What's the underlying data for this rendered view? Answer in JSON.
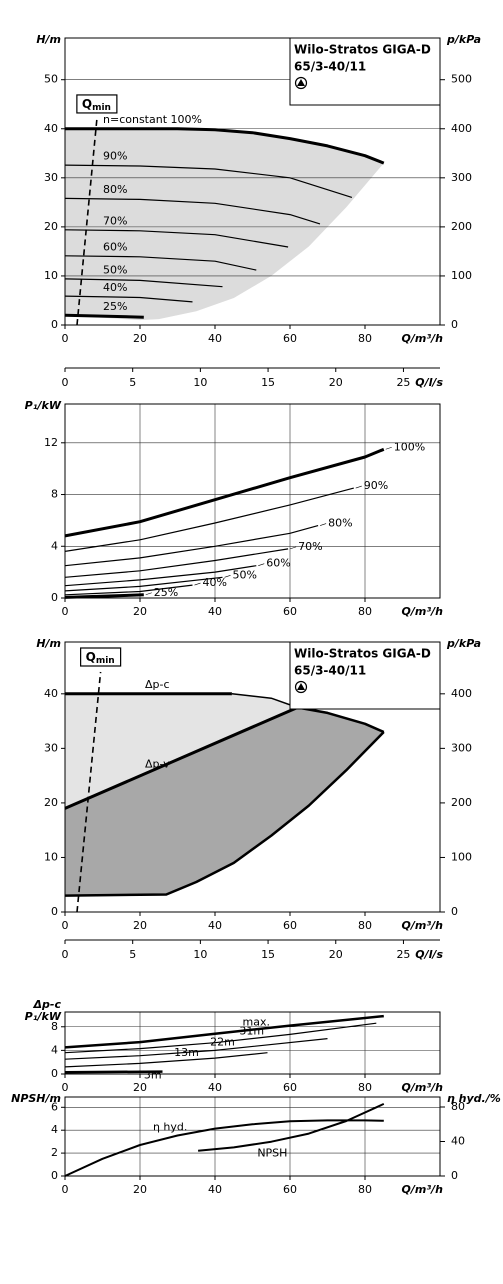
{
  "chart_data": [
    {
      "type": "line",
      "box_title": "Wilo-Stratos GIGA-D",
      "box_subtitle": "65/3-40/11",
      "ylabel": "H/m",
      "y2label": "p/kPa",
      "xlabel": "Q/m³/h",
      "xlim": [
        0,
        100
      ],
      "ylim": [
        0,
        58.5
      ],
      "y2lim": [
        0,
        585
      ],
      "xticks": [
        0,
        20,
        40,
        60,
        80
      ],
      "yticks": [
        0,
        10,
        20,
        30,
        40,
        50
      ],
      "y2ticks": [
        0,
        100,
        200,
        300,
        400,
        500
      ],
      "grid": "y",
      "qmin": {
        "main": "Q",
        "sub": "min"
      },
      "areas": [
        {
          "color": "#dcdcdc",
          "x": [
            0,
            40,
            60,
            80,
            85,
            75,
            65,
            55,
            45,
            35,
            25,
            20,
            0
          ],
          "values": [
            40,
            39.8,
            38,
            34.5,
            33,
            24,
            16,
            10,
            5.5,
            2.8,
            1.2,
            1,
            2
          ]
        }
      ],
      "series": [
        {
          "name": "n=constant 100%",
          "color": "#000000",
          "linewidth": 3,
          "x": [
            0,
            10,
            20,
            30,
            40,
            50,
            60,
            70,
            80,
            85
          ],
          "values": [
            40,
            40,
            40,
            40,
            39.8,
            39.2,
            38,
            36.5,
            34.5,
            33
          ]
        },
        {
          "name": "90%",
          "color": "#000000",
          "linewidth": 1.2,
          "x": [
            0,
            20,
            40,
            60,
            76.5
          ],
          "values": [
            32.6,
            32.4,
            31.8,
            30,
            26
          ]
        },
        {
          "name": "80%",
          "color": "#000000",
          "linewidth": 1.2,
          "x": [
            0,
            20,
            40,
            60,
            68
          ],
          "values": [
            25.8,
            25.6,
            24.8,
            22.5,
            20.6
          ]
        },
        {
          "name": "70%",
          "color": "#000000",
          "linewidth": 1.2,
          "x": [
            0,
            20,
            40,
            59.5
          ],
          "values": [
            19.4,
            19.2,
            18.4,
            15.9
          ]
        },
        {
          "name": "60%",
          "color": "#000000",
          "linewidth": 1.2,
          "x": [
            0,
            20,
            40,
            51
          ],
          "values": [
            14.1,
            13.9,
            13,
            11.2
          ]
        },
        {
          "name": "50%",
          "color": "#000000",
          "linewidth": 1.2,
          "x": [
            0,
            20,
            42
          ],
          "values": [
            9.4,
            9.1,
            7.8
          ]
        },
        {
          "name": "40%",
          "color": "#000000",
          "linewidth": 1.2,
          "x": [
            0,
            20,
            34
          ],
          "values": [
            5.9,
            5.6,
            4.7
          ]
        },
        {
          "name": "25%",
          "color": "#000000",
          "linewidth": 3,
          "x": [
            0,
            21
          ],
          "values": [
            2,
            1.6
          ]
        },
        {
          "color": "#000000",
          "linewidth": 1.6,
          "dash": true,
          "x": [
            3.2,
            8.5
          ],
          "values": [
            0,
            42
          ]
        }
      ]
    },
    {
      "type": "axis",
      "xlabel": "Q/l/s",
      "xlim": [
        0,
        27.7
      ],
      "xticks": [
        0,
        5,
        10,
        15,
        20,
        25
      ]
    },
    {
      "type": "line",
      "ylabel": "P₁/kW",
      "xlabel": "Q/m³/h",
      "xlim": [
        0,
        100
      ],
      "ylim": [
        0,
        15
      ],
      "xticks": [
        0,
        20,
        40,
        60,
        80
      ],
      "yticks": [
        0,
        4,
        8,
        12
      ],
      "grid": "both",
      "series": [
        {
          "name": "100%",
          "color": "#000000",
          "linewidth": 3,
          "x": [
            0,
            20,
            40,
            60,
            80,
            85
          ],
          "values": [
            4.8,
            5.9,
            7.6,
            9.3,
            10.9,
            11.5
          ]
        },
        {
          "name": "90%",
          "color": "#000000",
          "linewidth": 1.2,
          "x": [
            0,
            20,
            40,
            60,
            77
          ],
          "values": [
            3.6,
            4.5,
            5.8,
            7.2,
            8.5
          ]
        },
        {
          "name": "80%",
          "color": "#000000",
          "linewidth": 1.2,
          "x": [
            0,
            20,
            40,
            60,
            67.5
          ],
          "values": [
            2.5,
            3.1,
            4,
            5,
            5.6
          ]
        },
        {
          "name": "70%",
          "color": "#000000",
          "linewidth": 1.2,
          "x": [
            0,
            20,
            40,
            59.5
          ],
          "values": [
            1.6,
            2.1,
            2.9,
            3.8
          ]
        },
        {
          "name": "60%",
          "color": "#000000",
          "linewidth": 1.2,
          "x": [
            0,
            20,
            40,
            51
          ],
          "values": [
            0.95,
            1.4,
            2,
            2.5
          ]
        },
        {
          "name": "50%",
          "color": "#000000",
          "linewidth": 1.2,
          "x": [
            0,
            20,
            42
          ],
          "values": [
            0.55,
            0.9,
            1.6
          ]
        },
        {
          "name": "40%",
          "color": "#000000",
          "linewidth": 1.2,
          "x": [
            0,
            20,
            34
          ],
          "values": [
            0.25,
            0.5,
            1
          ]
        },
        {
          "name": "25%",
          "color": "#000000",
          "linewidth": 3,
          "x": [
            0,
            21
          ],
          "values": [
            0.05,
            0.25
          ]
        }
      ]
    },
    {
      "type": "line",
      "box_title": "Wilo-Stratos GIGA-D",
      "box_subtitle": "65/3-40/11",
      "ylabel": "H/m",
      "y2label": "p/kPa",
      "xlabel": "Q/m³/h",
      "xlim": [
        0,
        100
      ],
      "ylim": [
        0,
        49.5
      ],
      "y2lim": [
        0,
        495
      ],
      "xticks": [
        0,
        20,
        40,
        60,
        80
      ],
      "yticks": [
        0,
        10,
        20,
        30,
        40
      ],
      "y2ticks": [
        0,
        100,
        200,
        300,
        400
      ],
      "grid": "none",
      "qmin": {
        "main": "Q",
        "sub": "min"
      },
      "areas": [
        {
          "color": "#e4e4e4",
          "x": [
            0,
            44.5,
            55,
            62,
            0
          ],
          "values": [
            40,
            40,
            39.2,
            37.5,
            19
          ]
        },
        {
          "color": "#a8a8a8",
          "x": [
            0,
            62,
            70,
            80,
            85,
            75,
            65,
            55,
            45,
            35,
            27,
            0
          ],
          "values": [
            19,
            37.5,
            36.5,
            34.5,
            33,
            26,
            19.5,
            14,
            9,
            5.5,
            3.2,
            3
          ]
        }
      ],
      "series": [
        {
          "name": "Δp-c",
          "color": "#000000",
          "linewidth": 3,
          "x": [
            0,
            44.5
          ],
          "values": [
            40,
            40
          ]
        },
        {
          "name": "Δp-v",
          "color": "#000000",
          "linewidth": 3,
          "x": [
            0,
            62
          ],
          "values": [
            19,
            37.5
          ]
        },
        {
          "color": "#000000",
          "linewidth": 1.5,
          "x": [
            44.5,
            55,
            62,
            70,
            80,
            85
          ],
          "values": [
            40,
            39.2,
            37.5,
            36.5,
            34.5,
            33
          ]
        },
        {
          "color": "#000000",
          "linewidth": 2.5,
          "x": [
            62,
            70,
            80,
            85
          ],
          "values": [
            37.5,
            36.5,
            34.5,
            33
          ]
        },
        {
          "color": "#000000",
          "linewidth": 2.5,
          "x": [
            0,
            27,
            35,
            45,
            55,
            65,
            75,
            85
          ],
          "values": [
            3,
            3.2,
            5.5,
            9,
            14,
            19.5,
            26,
            33
          ]
        },
        {
          "color": "#000000",
          "linewidth": 1.6,
          "dash": true,
          "x": [
            3.2,
            9.5
          ],
          "values": [
            0,
            44
          ]
        }
      ]
    },
    {
      "type": "axis",
      "xlabel": "Q/l/s",
      "xlim": [
        0,
        27.7
      ],
      "xticks": [
        0,
        5,
        10,
        15,
        20,
        25
      ]
    },
    {
      "type": "line",
      "ylabel_lines": [
        "Δp-c",
        "P₁/kW"
      ],
      "xlabel": "Q/m³/h",
      "xlim": [
        0,
        100
      ],
      "ylim": [
        0,
        10.5
      ],
      "xticks": [
        0,
        20,
        40,
        60,
        80
      ],
      "yticks": [
        0,
        4,
        8
      ],
      "grid": "both",
      "series": [
        {
          "name": "max.",
          "color": "#000000",
          "linewidth": 2.5,
          "x": [
            0,
            20,
            40,
            60,
            85
          ],
          "values": [
            4.5,
            5.4,
            6.8,
            8.2,
            9.8
          ]
        },
        {
          "name": "31m",
          "color": "#000000",
          "linewidth": 1.2,
          "x": [
            0,
            20,
            40,
            60,
            83
          ],
          "values": [
            3.6,
            4.3,
            5.3,
            6.7,
            8.6
          ]
        },
        {
          "name": "22m",
          "color": "#000000",
          "linewidth": 1.2,
          "x": [
            0,
            20,
            40,
            70
          ],
          "values": [
            2.5,
            3.1,
            4,
            6
          ]
        },
        {
          "name": "13m",
          "color": "#000000",
          "linewidth": 1.2,
          "x": [
            0,
            20,
            40,
            54
          ],
          "values": [
            1.2,
            1.8,
            2.7,
            3.6
          ]
        },
        {
          "name": "3m",
          "color": "#000000",
          "linewidth": 2.5,
          "x": [
            0,
            26
          ],
          "values": [
            0.3,
            0.4
          ]
        }
      ]
    },
    {
      "type": "line",
      "ylabel": "NPSH/m",
      "y2label": "η hyd./%",
      "xlabel": "Q/m³/h",
      "xlim": [
        0,
        100
      ],
      "ylim": [
        0,
        6.9
      ],
      "y2lim": [
        0,
        91.6
      ],
      "xticks": [
        0,
        20,
        40,
        60,
        80
      ],
      "yticks": [
        0,
        2,
        4,
        6
      ],
      "y2ticks": [
        0,
        40,
        80
      ],
      "grid": "both",
      "series": [
        {
          "name": "η hyd.",
          "color": "#000000",
          "linewidth": 2,
          "axis": "y2",
          "x": [
            0,
            10,
            20,
            30,
            40,
            50,
            60,
            70,
            80,
            85
          ],
          "values": [
            0,
            20,
            36,
            47,
            55,
            60,
            63.5,
            64.5,
            64.5,
            64
          ]
        },
        {
          "name": "NPSH",
          "color": "#000000",
          "linewidth": 2,
          "x": [
            35.5,
            45,
            55,
            65,
            75,
            85
          ],
          "values": [
            2.2,
            2.5,
            3,
            3.7,
            4.8,
            6.3
          ]
        }
      ]
    }
  ]
}
